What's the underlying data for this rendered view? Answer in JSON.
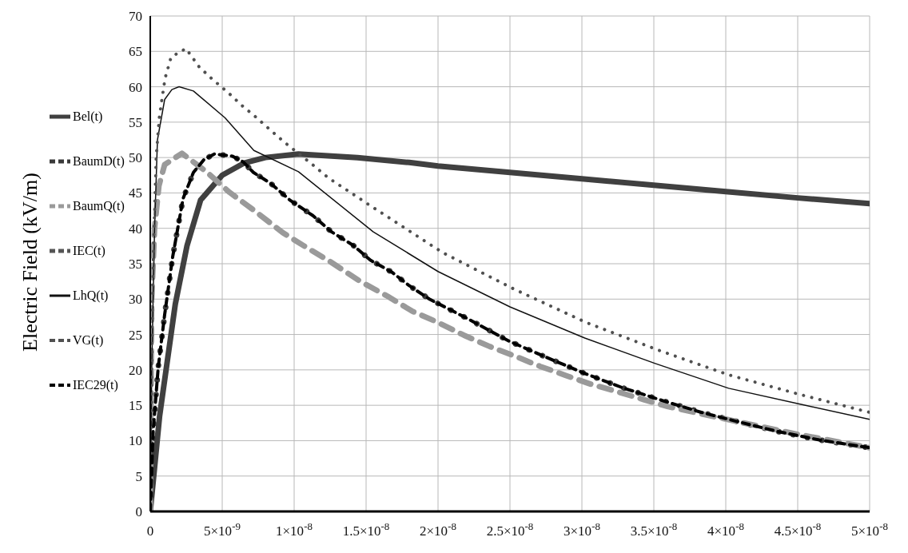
{
  "chart_data": {
    "type": "line",
    "ylabel": "Electric Field  (kV/m)",
    "xlim": [
      0,
      5e-08
    ],
    "ylim": [
      0,
      70
    ],
    "xticks": [
      0,
      {
        "value": 5e-09,
        "label": "5×10$^{-9}$"
      },
      {
        "value": 1e-08,
        "label": "1×10$^{-8}$"
      },
      {
        "value": 1.5e-08,
        "label": "1.5×10$^{-8}$"
      },
      {
        "value": 2e-08,
        "label": "2×10$^{-8}$"
      },
      {
        "value": 2.5e-08,
        "label": "2.5×10$^{-8}$"
      },
      {
        "value": 3e-08,
        "label": "3×10$^{-8}$"
      },
      {
        "value": 3.5e-08,
        "label": "3.5×10$^{-8}$"
      },
      {
        "value": 4e-08,
        "label": "4×10$^{-8}$"
      },
      {
        "value": 4.5e-08,
        "label": "4.5×10$^{-8}$"
      },
      {
        "value": 5e-08,
        "label": "5×10$^{-8}$"
      }
    ],
    "yticks": [
      0,
      5,
      10,
      15,
      20,
      25,
      30,
      35,
      40,
      45,
      50,
      55,
      60,
      65,
      70
    ],
    "grid": true,
    "legend": "left",
    "marker": "none",
    "series": [
      {
        "name": "Bel(t)",
        "color": "#404040",
        "line_style": "solid",
        "x": [
          0,
          6.5e-10,
          1.74e-09,
          2.55e-09,
          3.5e-09,
          5e-09,
          6.5e-09,
          8e-09,
          1.03e-08,
          1.44e-08,
          1.8e-08,
          2e-08,
          2.5e-08,
          3e-08,
          3.5e-08,
          4e-08,
          4.5e-08,
          5e-08
        ],
        "values": [
          0,
          13.5,
          29.3,
          37.5,
          44,
          47.5,
          49.2,
          50,
          50.5,
          50,
          49.3,
          48.8,
          47.9,
          47,
          46.1,
          45.2,
          44.3,
          43.5
        ]
      },
      {
        "name": "BaumD(t)",
        "color": "#3a3a3a",
        "line_style": "dotted",
        "x": [
          0,
          2e-10,
          5.5e-10,
          1e-09,
          1.56e-09,
          2.28e-09,
          3e-09,
          3.73e-09,
          4.46e-09,
          5.7e-09,
          6.45e-09,
          7.17e-09,
          8.4e-09,
          9.7e-09,
          1.13e-08,
          1.26e-08,
          1.41e-08,
          1.53e-08,
          1.68e-08,
          1.8e-08,
          1.94e-08,
          2.2e-08,
          2.49e-08,
          2.75e-08,
          3.02e-08,
          3.28e-08,
          3.57e-08,
          3.83e-08,
          4.1e-08,
          4.36e-08,
          4.65e-08,
          5e-08
        ],
        "values": [
          0,
          11.3,
          20.3,
          27.8,
          36,
          44.2,
          47.9,
          49.7,
          50.5,
          50.2,
          49.4,
          47.9,
          46.3,
          44,
          41.8,
          39.5,
          37.6,
          35.5,
          33.8,
          31.9,
          30,
          27.3,
          24.1,
          21.8,
          19.5,
          17.5,
          15.6,
          14,
          12.6,
          11.3,
          10.1,
          9
        ]
      },
      {
        "name": "BaumQ(t)",
        "color": "#9a9a9a",
        "line_style": "dashed",
        "x": [
          0,
          1e-10,
          3e-10,
          6e-10,
          1e-09,
          2.2e-09,
          3.9e-09,
          5.5e-09,
          7.3e-09,
          9.2e-09,
          1.07e-08,
          1.25e-08,
          1.46e-08,
          1.65e-08,
          1.82e-08,
          2e-08,
          2.18e-08,
          2.36e-08,
          2.54e-08,
          2.71e-08,
          2.89e-08,
          3.06e-08,
          3.25e-08,
          3.43e-08,
          3.6e-08,
          4.1e-08,
          4.5e-08,
          5e-08
        ],
        "values": [
          0,
          30,
          40,
          46,
          49,
          50.6,
          48,
          45.1,
          42.4,
          39.4,
          37.5,
          35.3,
          32.5,
          30.4,
          28.3,
          26.7,
          24.9,
          23.3,
          21.9,
          20.5,
          19.2,
          18,
          16.9,
          15.8,
          14.8,
          12.6,
          10.9,
          9
        ]
      },
      {
        "name": "IEC(t)",
        "color": "#555555",
        "line_style": "dashed"
      },
      {
        "name": "LhQ(t)",
        "color": "#111111",
        "line_style": "solid",
        "x": [
          0,
          1e-10,
          3e-10,
          5e-10,
          1e-09,
          1.5e-09,
          2e-09,
          3e-09,
          5.2e-09,
          7.2e-09,
          1.03e-08,
          1.55e-08,
          2e-08,
          2.5e-08,
          3.02e-08,
          3.51e-08,
          4.02e-08,
          4.53e-08,
          5e-08
        ],
        "values": [
          0,
          20,
          40,
          52.5,
          58.2,
          59.6,
          60,
          59.4,
          55.6,
          51,
          48,
          39.5,
          33.9,
          28.9,
          24.5,
          20.9,
          17.4,
          15.1,
          13
        ]
      },
      {
        "name": "VG(t)",
        "color": "#505050",
        "line_style": "dotted",
        "x": [
          0,
          1e-10,
          2e-10,
          4.1e-10,
          6.2e-10,
          8.3e-10,
          1.03e-09,
          1.45e-09,
          2.48e-09,
          3.4e-09,
          4.35e-09,
          5.4e-09,
          6.4e-09,
          7.35e-09,
          8.4e-09,
          9.3e-09,
          1.14e-08,
          1.24e-08,
          1.53e-08,
          2.03e-08,
          2.53e-08,
          3.03e-08,
          3.53e-08,
          4.02e-08,
          4.52e-08,
          5e-08
        ],
        "values": [
          0,
          20,
          35,
          50,
          55.5,
          58.5,
          61.2,
          64.2,
          65.4,
          62.8,
          61,
          59.2,
          57.3,
          55.7,
          53.8,
          52.2,
          48.8,
          47.1,
          43.2,
          36.6,
          31.4,
          26.7,
          22.8,
          19.3,
          16.5,
          14
        ]
      },
      {
        "name": "IEC29(t)",
        "color": "#000000",
        "line_style": "dashed",
        "x": [
          0,
          2e-10,
          5.5e-10,
          1e-09,
          1.56e-09,
          2.28e-09,
          3e-09,
          3.73e-09,
          4.46e-09,
          5.7e-09,
          6.45e-09,
          7.17e-09,
          8.4e-09,
          9.7e-09,
          1.13e-08,
          1.26e-08,
          1.41e-08,
          1.53e-08,
          1.68e-08,
          1.8e-08,
          1.94e-08,
          2.2e-08,
          2.49e-08,
          2.75e-08,
          3.02e-08,
          3.28e-08,
          3.57e-08,
          3.83e-08,
          4.1e-08,
          4.36e-08,
          4.65e-08,
          5e-08
        ],
        "values": [
          0,
          11.3,
          20.3,
          27.8,
          36,
          44.2,
          47.9,
          49.7,
          50.5,
          50.2,
          49.4,
          47.9,
          46.3,
          44,
          41.8,
          39.5,
          37.6,
          35.5,
          33.8,
          31.9,
          30,
          27.3,
          24.1,
          21.8,
          19.5,
          17.5,
          15.6,
          14,
          12.6,
          11.3,
          10.1,
          9
        ]
      }
    ]
  }
}
